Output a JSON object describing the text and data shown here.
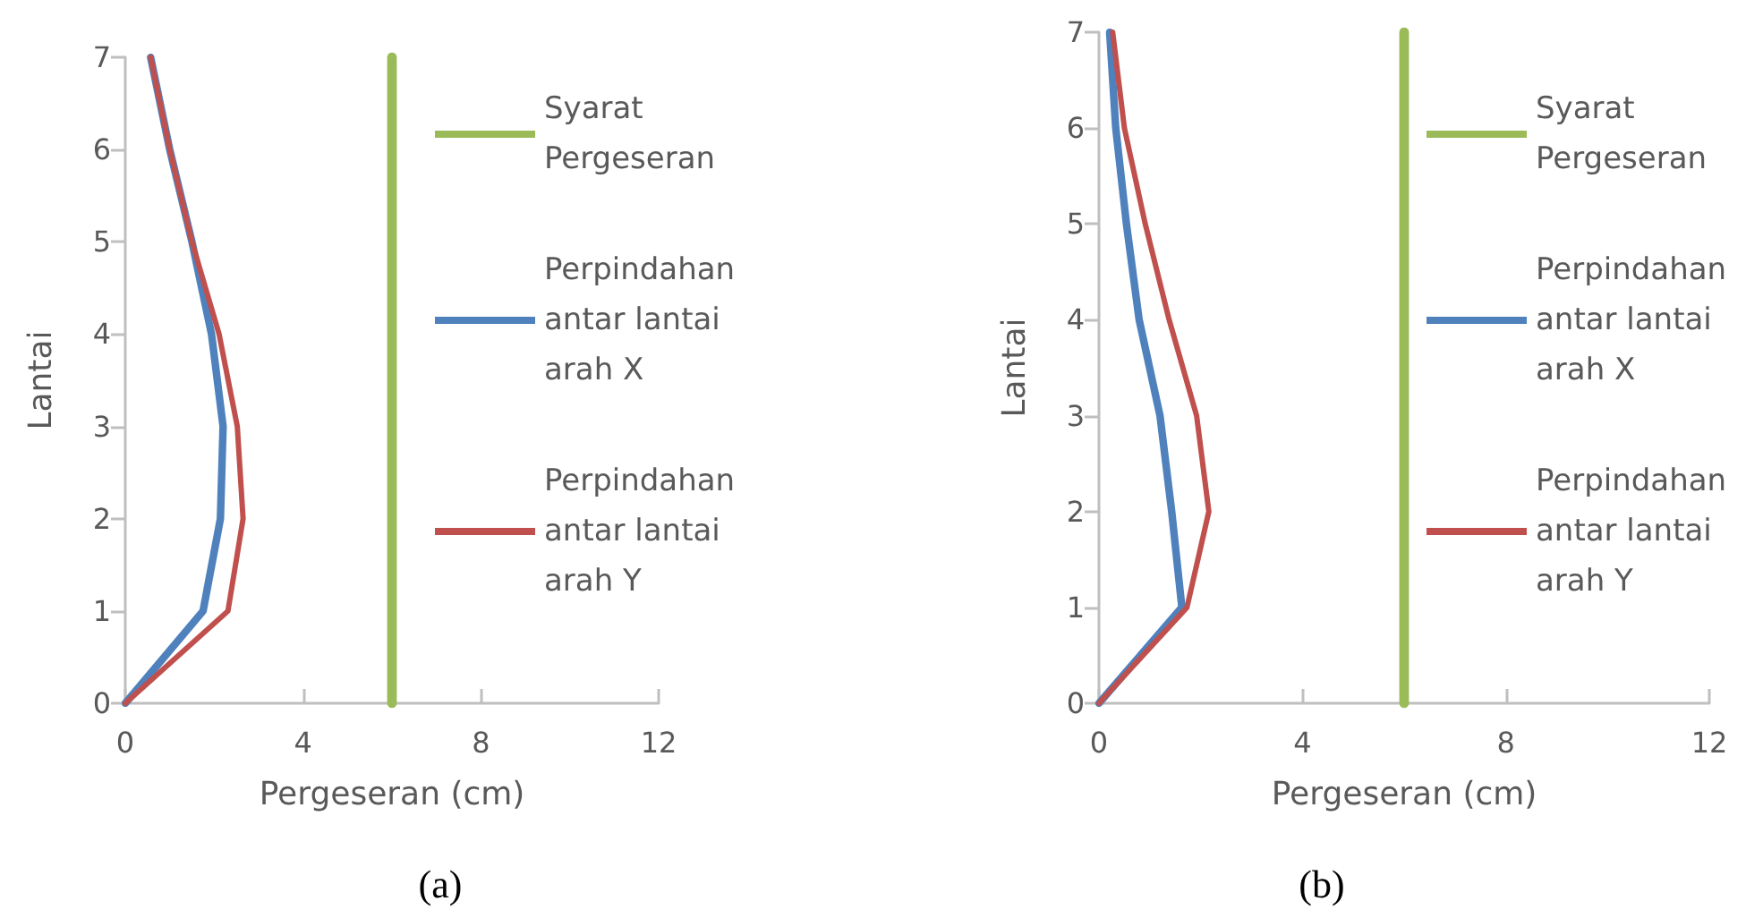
{
  "chart_data": [
    {
      "type": "line",
      "xlabel": "Pergeseran (cm)",
      "ylabel": "Lantai",
      "xlim": [
        0,
        12
      ],
      "xticks": [
        0,
        4,
        8,
        12
      ],
      "ylim": [
        0,
        7
      ],
      "yticks": [
        0,
        1,
        2,
        3,
        4,
        5,
        6,
        7
      ],
      "grid": false,
      "legend": "right",
      "marker": "none",
      "line_style": "solid",
      "annotations": [
        "(a)"
      ],
      "series": [
        {
          "name": "Syarat Pergeseran",
          "color": "#9bbb59",
          "x": [
            6,
            6
          ],
          "values": [
            0,
            7
          ]
        },
        {
          "name": "Perpindahan antar lantai arah X",
          "color": "#4f81bd",
          "x": [
            0,
            1.75,
            2.14,
            2.2,
            1.94,
            1.5,
            1.0,
            0.57
          ],
          "values": [
            0,
            1,
            2,
            3,
            4,
            5,
            6,
            7
          ]
        },
        {
          "name": "Perpindahan antar lantai arah Y",
          "color": "#c0504d",
          "x": [
            0,
            2.31,
            2.65,
            2.52,
            2.11,
            1.5,
            1.0,
            0.57
          ],
          "values": [
            0,
            1,
            2,
            3,
            4,
            5,
            6,
            7
          ]
        }
      ]
    },
    {
      "type": "line",
      "xlabel": "Pergeseran (cm)",
      "ylabel": "Lantai",
      "xlim": [
        0,
        12
      ],
      "xticks": [
        0,
        4,
        8,
        12
      ],
      "ylim": [
        0,
        7
      ],
      "yticks": [
        0,
        1,
        2,
        3,
        4,
        5,
        6,
        7
      ],
      "grid": false,
      "legend": "right",
      "marker": "none",
      "line_style": "solid",
      "annotations": [
        "(b)"
      ],
      "series": [
        {
          "name": "Syarat Pergeseran",
          "color": "#9bbb59",
          "x": [
            6,
            6
          ],
          "values": [
            0,
            7
          ]
        },
        {
          "name": "Perpindahan antar lantai arah X",
          "color": "#4f81bd",
          "x": [
            0,
            1.63,
            1.43,
            1.2,
            0.79,
            0.54,
            0.33,
            0.21
          ],
          "values": [
            0,
            1,
            2,
            3,
            4,
            5,
            6,
            7
          ]
        },
        {
          "name": "Perpindahan antar lantai arah Y",
          "color": "#c0504d",
          "x": [
            0,
            1.73,
            2.16,
            1.92,
            1.38,
            0.91,
            0.5,
            0.27
          ],
          "values": [
            0,
            1,
            2,
            3,
            4,
            5,
            6,
            7
          ]
        }
      ]
    }
  ]
}
